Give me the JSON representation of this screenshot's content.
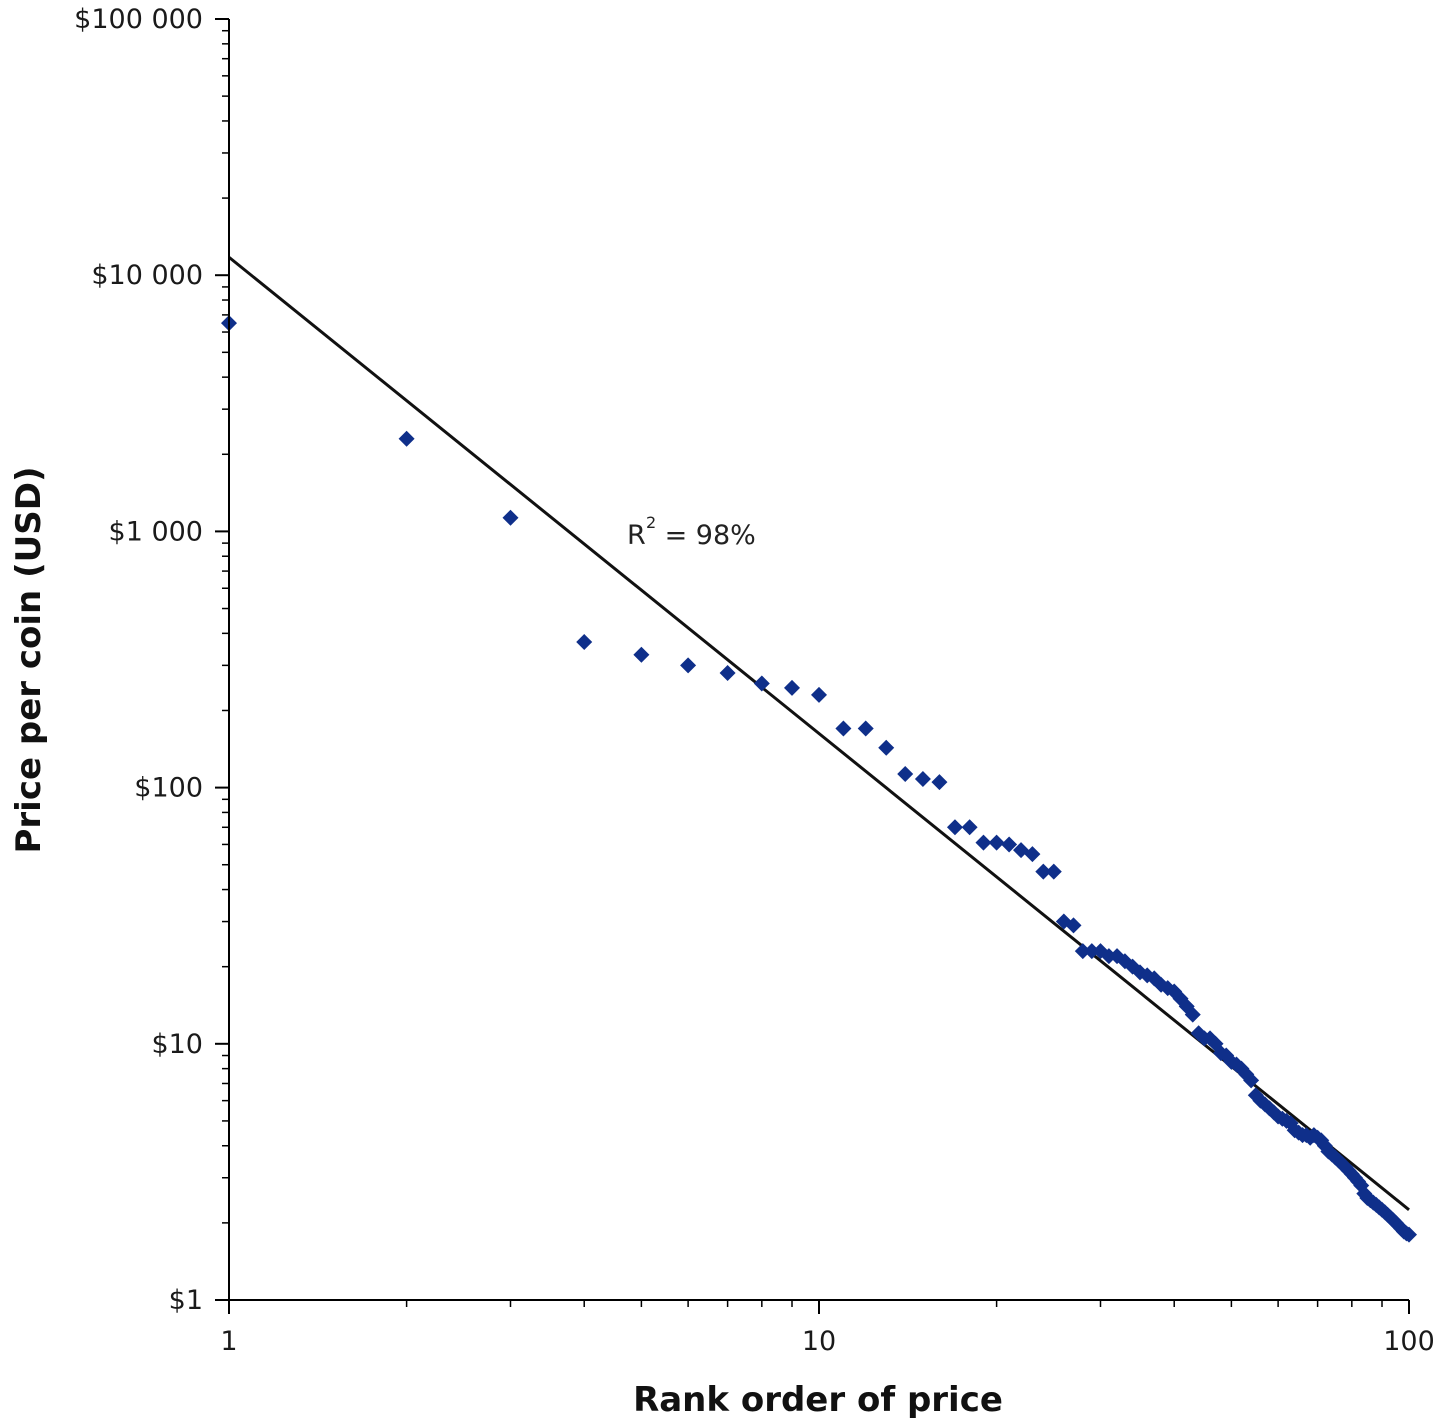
{
  "chart_data": {
    "type": "scatter",
    "xlabel": "Rank order of price",
    "ylabel": "Price per coin (USD)",
    "x_scale": "log",
    "y_scale": "log",
    "xlim": [
      1,
      100
    ],
    "ylim": [
      1,
      100000
    ],
    "x_ticks": [
      {
        "value": 1,
        "label": "1"
      },
      {
        "value": 10,
        "label": "10"
      },
      {
        "value": 100,
        "label": "100"
      }
    ],
    "y_ticks": [
      {
        "value": 1,
        "label": "$1"
      },
      {
        "value": 10,
        "label": "$10"
      },
      {
        "value": 100,
        "label": "$100"
      },
      {
        "value": 1000,
        "label": "$1 000"
      },
      {
        "value": 10000,
        "label": "$10 000"
      },
      {
        "value": 100000,
        "label": "$100 000"
      }
    ],
    "grid": false,
    "legend": "none",
    "marker_color": "#0f2f8a",
    "line_color": "#111111",
    "annotation": {
      "base": "R",
      "sup": "2",
      "text": " = 98%"
    },
    "trendline": {
      "type": "power",
      "x": [
        1,
        100
      ],
      "y": [
        11750,
        2.25
      ]
    },
    "series": [
      {
        "x": [
          1,
          2,
          3,
          4,
          5,
          6,
          7,
          8,
          9,
          10,
          11,
          12,
          13,
          14,
          15,
          16,
          17,
          18,
          19,
          20,
          21,
          22,
          23,
          24,
          25,
          26,
          27,
          28,
          29,
          30,
          31,
          32,
          33,
          34,
          35,
          36,
          37,
          38,
          39,
          40,
          41,
          42,
          43,
          44,
          45,
          46,
          47,
          48,
          49,
          50,
          51,
          52,
          53,
          54,
          55,
          56,
          57,
          58,
          59,
          60,
          61,
          62,
          63,
          64,
          65,
          66,
          67,
          68,
          69,
          70,
          71,
          72,
          73,
          74,
          75,
          76,
          77,
          78,
          79,
          80,
          81,
          82,
          83,
          84,
          85,
          86,
          87,
          88,
          89,
          90,
          91,
          92,
          93,
          94,
          95,
          96,
          97,
          98,
          99,
          100
        ],
        "y": [
          6500,
          2300,
          1130,
          370,
          330,
          300,
          280,
          255,
          245,
          230,
          170,
          170,
          143,
          113,
          108,
          105,
          70,
          70,
          61,
          61,
          60,
          57,
          55,
          47,
          47,
          30,
          29,
          23,
          23,
          23,
          22,
          22,
          21,
          20,
          19,
          18.5,
          18,
          17,
          16.5,
          16,
          15,
          14,
          13,
          11,
          10.5,
          10.5,
          10,
          9.2,
          9,
          8.5,
          8.3,
          8,
          7.6,
          7.2,
          6.3,
          6,
          5.8,
          5.6,
          5.4,
          5.2,
          5.1,
          5,
          4.9,
          4.6,
          4.5,
          4.4,
          4.4,
          4.3,
          4.4,
          4.3,
          4.2,
          4,
          3.8,
          3.7,
          3.6,
          3.5,
          3.4,
          3.3,
          3.2,
          3.1,
          3,
          2.9,
          2.8,
          2.6,
          2.5,
          2.45,
          2.4,
          2.35,
          2.3,
          2.25,
          2.2,
          2.15,
          2.1,
          2.05,
          2.0,
          1.95,
          1.9,
          1.85,
          1.82,
          1.8
        ]
      }
    ]
  }
}
